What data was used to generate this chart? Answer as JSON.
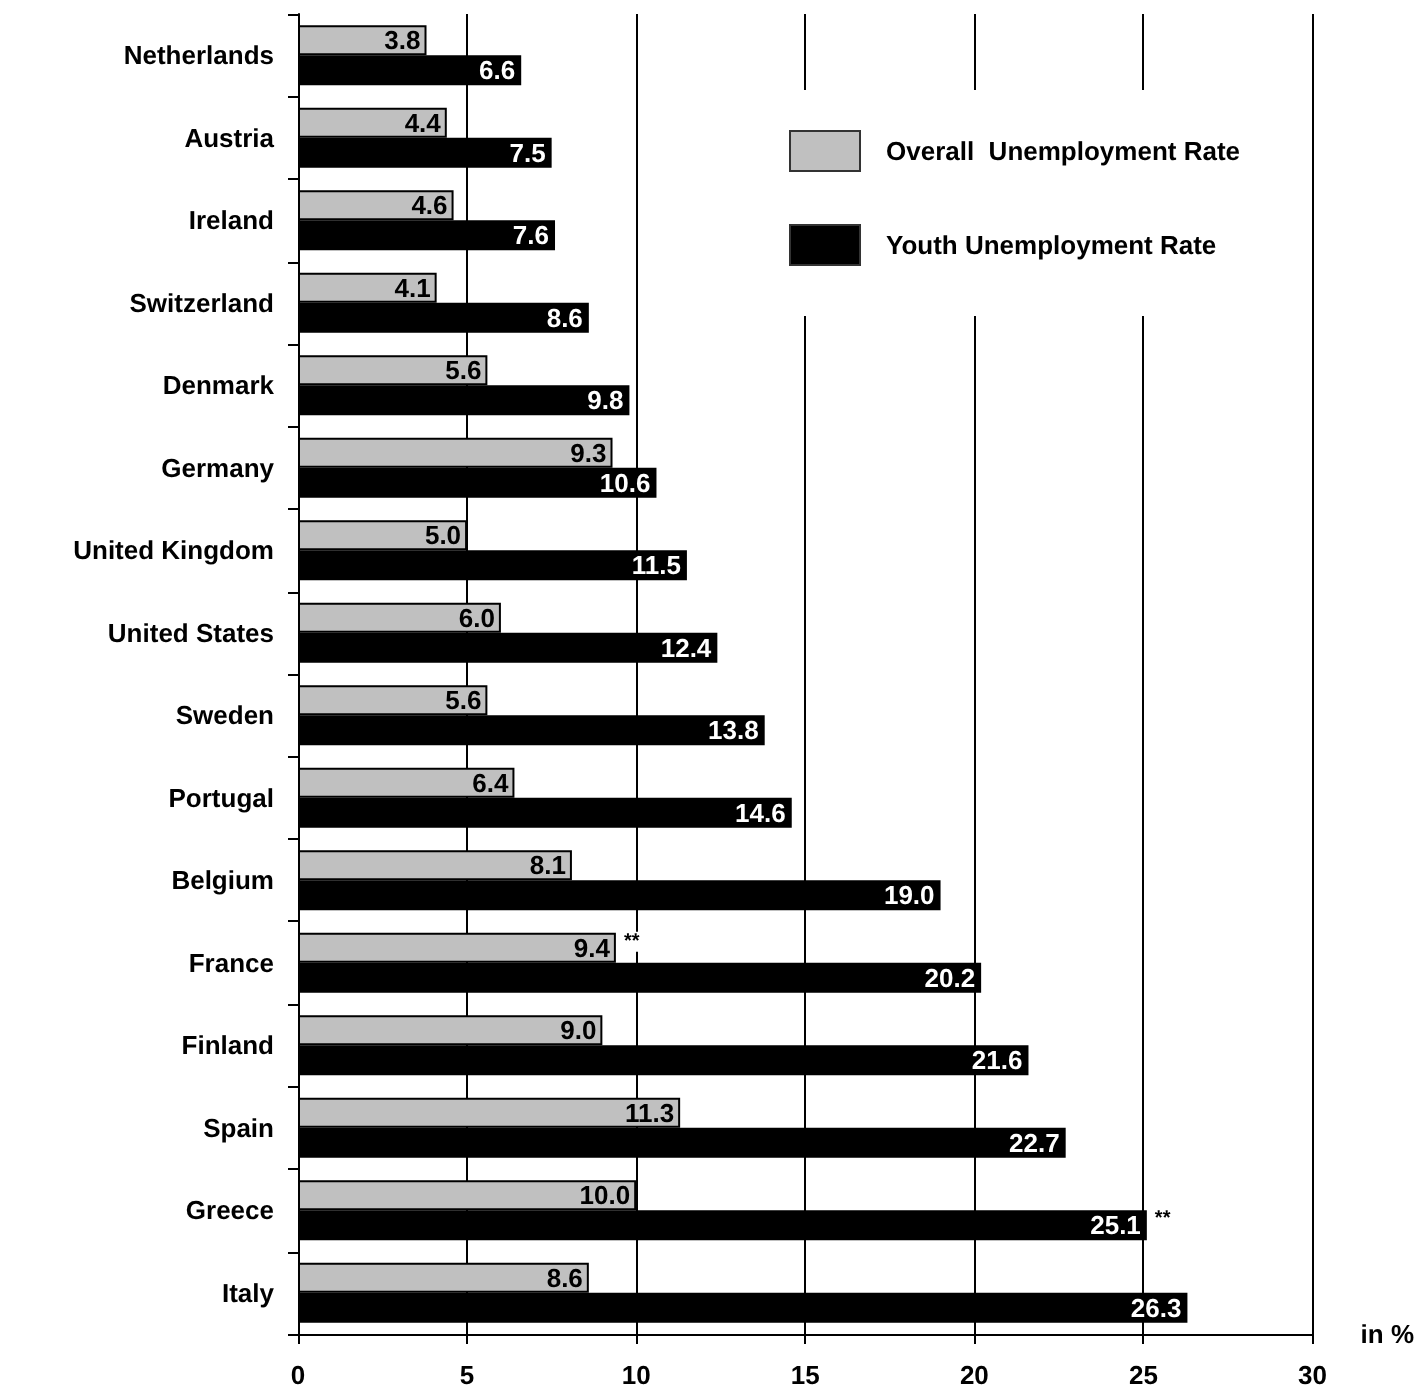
{
  "chart_data": {
    "type": "bar",
    "orientation": "horizontal",
    "categories": [
      "Netherlands",
      "Austria",
      "Ireland",
      "Switzerland",
      "Denmark",
      "Germany",
      "United Kingdom",
      "United States",
      "Sweden",
      "Portugal",
      "Belgium",
      "France",
      "Finland",
      "Spain",
      "Greece",
      "Italy"
    ],
    "series": [
      {
        "name": "Overall  Unemployment Rate",
        "color": "#c0c0c0",
        "values": [
          3.8,
          4.4,
          4.6,
          4.1,
          5.6,
          9.3,
          5.0,
          6.0,
          5.6,
          6.4,
          8.1,
          9.4,
          9.0,
          11.3,
          10.0,
          8.6
        ],
        "value_labels": [
          "3.8",
          "4.4",
          "4.6",
          "4.1",
          "5.6",
          "9.3",
          "5.0",
          "6.0",
          "5.6",
          "6.4",
          "8.1",
          "9.4",
          "9.0",
          "11.3",
          "10.0",
          "8.6"
        ]
      },
      {
        "name": "Youth Unemployment Rate",
        "color": "#000000",
        "values": [
          6.6,
          7.5,
          7.6,
          8.6,
          9.8,
          10.6,
          11.5,
          12.4,
          13.8,
          14.6,
          19.0,
          20.2,
          21.6,
          22.7,
          25.1,
          26.3
        ],
        "value_labels": [
          "6.6",
          "7.5",
          "7.6",
          "8.6",
          "9.8",
          "10.6",
          "11.5",
          "12.4",
          "13.8",
          "14.6",
          "19.0",
          "20.2",
          "21.6",
          "22.7",
          "25.1",
          "26.3"
        ]
      }
    ],
    "xlabel": "in %",
    "xlim": [
      0,
      30
    ],
    "xticks": [
      0,
      5,
      10,
      15,
      20,
      25,
      30
    ],
    "grid": "x",
    "legend": "top right",
    "annotations": [
      {
        "text": "**",
        "x": 9.4,
        "y": "France"
      },
      {
        "text": "**",
        "x": 25.1,
        "y": "Greece"
      }
    ]
  }
}
